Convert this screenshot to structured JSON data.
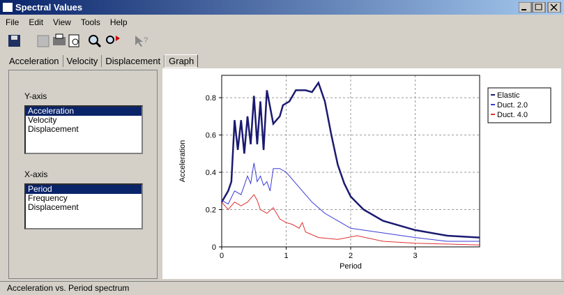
{
  "window": {
    "title": "Spectral Values",
    "menu": [
      "File",
      "Edit",
      "View",
      "Tools",
      "Help"
    ],
    "tabs": [
      "Acceleration",
      "Velocity",
      "Displacement",
      "Graph"
    ],
    "y_axis_panel": {
      "label": "Y-axis",
      "items": [
        "Acceleration",
        "Velocity",
        "Displacement"
      ]
    },
    "x_axis_panel": {
      "label": "X-axis",
      "items": [
        "Period",
        "Frequency",
        "Displacement"
      ]
    },
    "status": "Acceleration vs. Period spectrum"
  },
  "chart_data": {
    "type": "line",
    "x_label": "Period",
    "y_label": "Acceleration",
    "xlim": [
      0,
      4
    ],
    "ylim": [
      0,
      0.92
    ],
    "xticks": [
      0,
      1,
      2,
      3
    ],
    "yticks": [
      0,
      0.2,
      0.4,
      0.6,
      0.8
    ],
    "grid": true,
    "legend": "upper right",
    "series": [
      {
        "name": "Elastic",
        "color": "#1a1a70",
        "x": [
          0,
          0.1,
          0.15,
          0.2,
          0.25,
          0.3,
          0.35,
          0.4,
          0.45,
          0.5,
          0.55,
          0.6,
          0.65,
          0.7,
          0.8,
          0.9,
          0.95,
          1.05,
          1.15,
          1.3,
          1.4,
          1.5,
          1.6,
          1.7,
          1.8,
          1.9,
          2.0,
          2.2,
          2.5,
          3.0,
          3.5,
          4.0
        ],
        "values": [
          0.24,
          0.3,
          0.35,
          0.68,
          0.52,
          0.68,
          0.5,
          0.7,
          0.55,
          0.81,
          0.55,
          0.78,
          0.52,
          0.84,
          0.66,
          0.7,
          0.76,
          0.78,
          0.84,
          0.84,
          0.83,
          0.88,
          0.78,
          0.6,
          0.44,
          0.34,
          0.27,
          0.2,
          0.14,
          0.09,
          0.06,
          0.05
        ]
      },
      {
        "name": "Duct. 2.0",
        "color": "#3a3ad8",
        "x": [
          0,
          0.1,
          0.2,
          0.3,
          0.4,
          0.45,
          0.5,
          0.55,
          0.6,
          0.65,
          0.7,
          0.75,
          0.8,
          0.9,
          1.0,
          1.2,
          1.4,
          1.6,
          1.8,
          2.0,
          2.4,
          3.0,
          3.5,
          4.0
        ],
        "values": [
          0.25,
          0.23,
          0.3,
          0.28,
          0.38,
          0.34,
          0.45,
          0.35,
          0.38,
          0.33,
          0.35,
          0.3,
          0.42,
          0.42,
          0.4,
          0.32,
          0.24,
          0.18,
          0.14,
          0.1,
          0.08,
          0.05,
          0.03,
          0.03
        ]
      },
      {
        "name": "Duct. 4.0",
        "color": "#e03030",
        "x": [
          0,
          0.1,
          0.2,
          0.3,
          0.4,
          0.5,
          0.55,
          0.6,
          0.7,
          0.8,
          0.9,
          1.0,
          1.1,
          1.2,
          1.25,
          1.3,
          1.5,
          1.8,
          2.1,
          2.5,
          3.0,
          4.0
        ],
        "values": [
          0.24,
          0.2,
          0.24,
          0.22,
          0.24,
          0.28,
          0.25,
          0.2,
          0.18,
          0.21,
          0.15,
          0.13,
          0.12,
          0.1,
          0.13,
          0.08,
          0.05,
          0.04,
          0.06,
          0.03,
          0.02,
          0.01
        ]
      }
    ]
  }
}
